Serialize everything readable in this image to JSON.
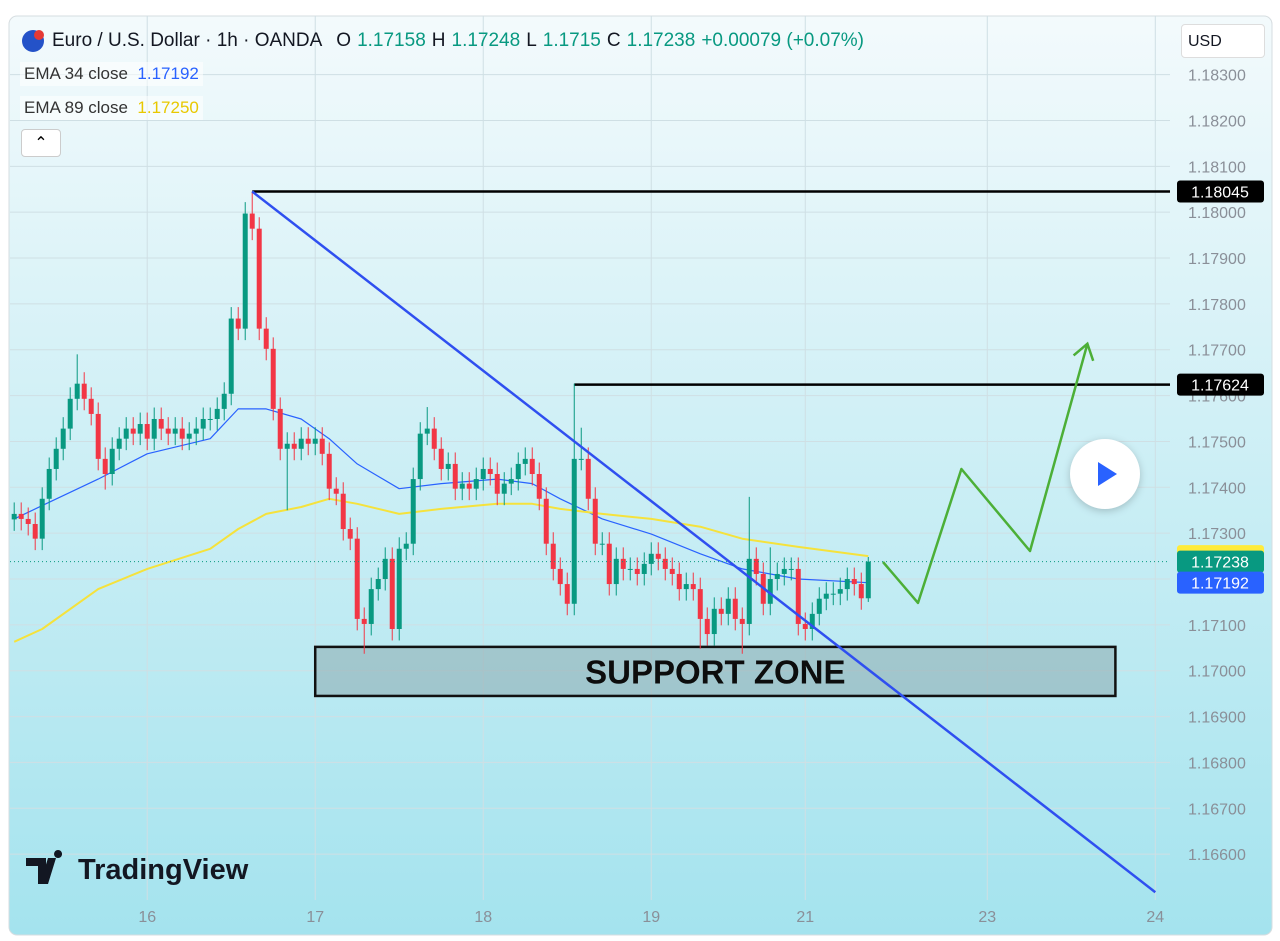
{
  "header": {
    "title": "Euro / U.S. Dollar · 1h · OANDA",
    "open_label": "O",
    "open": 1.17158,
    "high_label": "H",
    "high": 1.17248,
    "low_label": "L",
    "low": 1.1715,
    "close_label": "C",
    "close": 1.17238,
    "change": "+0.00079 (+0.07%)",
    "currency": "USD",
    "logo": "TradingView"
  },
  "chart_data": {
    "type": "candlestick",
    "xlim": [
      -19.6,
      146.1
    ],
    "ylim": [
      1.165,
      1.1843
    ],
    "grid": true,
    "xticks": [
      {
        "value": 0,
        "label": "16"
      },
      {
        "value": 24,
        "label": "17"
      },
      {
        "value": 48,
        "label": "18"
      },
      {
        "value": 72,
        "label": "19"
      },
      {
        "value": 94,
        "label": "21"
      },
      {
        "value": 120,
        "label": "23"
      },
      {
        "value": 144,
        "label": "24"
      }
    ],
    "yticks": [
      {
        "value": 1.166,
        "label": "1.16600"
      },
      {
        "value": 1.167,
        "label": "1.16700"
      },
      {
        "value": 1.168,
        "label": "1.16800"
      },
      {
        "value": 1.169,
        "label": "1.16900"
      },
      {
        "value": 1.17,
        "label": "1.17000"
      },
      {
        "value": 1.171,
        "label": "1.17100"
      },
      {
        "value": 1.172,
        "label": "1.17200"
      },
      {
        "value": 1.173,
        "label": "1.17300"
      },
      {
        "value": 1.174,
        "label": "1.17400"
      },
      {
        "value": 1.175,
        "label": "1.17500"
      },
      {
        "value": 1.176,
        "label": "1.17600"
      },
      {
        "value": 1.177,
        "label": "1.17700"
      },
      {
        "value": 1.178,
        "label": "1.17800"
      },
      {
        "value": 1.179,
        "label": "1.17900"
      },
      {
        "value": 1.18,
        "label": "1.18000"
      },
      {
        "value": 1.181,
        "label": "1.18100"
      },
      {
        "value": 1.182,
        "label": "1.18200"
      },
      {
        "value": 1.183,
        "label": "1.18300"
      }
    ],
    "candles": {
      "up_color": "#089981",
      "down_color": "#f23645",
      "x": [
        -19,
        -18,
        -17,
        -16,
        -15,
        -14,
        -13,
        -12,
        -11,
        -10,
        -9,
        -8,
        -7,
        -6,
        -5,
        -4,
        -3,
        -2,
        -1,
        0,
        1,
        2,
        3,
        4,
        5,
        6,
        7,
        8,
        9,
        10,
        11,
        12,
        13,
        14,
        15,
        16,
        17,
        18,
        19,
        20,
        21,
        22,
        23,
        24,
        25,
        26,
        27,
        28,
        29,
        30,
        31,
        32,
        33,
        34,
        35,
        36,
        37,
        38,
        39,
        40,
        41,
        42,
        43,
        44,
        45,
        46,
        47,
        48,
        49,
        50,
        51,
        52,
        53,
        54,
        55,
        56,
        57,
        58,
        59,
        60,
        61,
        62,
        63,
        64,
        65,
        66,
        67,
        68,
        69,
        70,
        71,
        72,
        73,
        74,
        75,
        76,
        77,
        78,
        79,
        80,
        81,
        82,
        83,
        84,
        85,
        86,
        87,
        88,
        89,
        90,
        91,
        92,
        93,
        94,
        95,
        96,
        97,
        98,
        99,
        100,
        101,
        102,
        103
      ],
      "ohlc": [
        [
          1.1733,
          1.17367,
          1.17305,
          1.17342
        ],
        [
          1.17342,
          1.17367,
          1.17306,
          1.17331
        ],
        [
          1.17331,
          1.17356,
          1.17295,
          1.1732
        ],
        [
          1.1732,
          1.17345,
          1.17263,
          1.17288
        ],
        [
          1.17288,
          1.174,
          1.17263,
          1.17375
        ],
        [
          1.17375,
          1.17465,
          1.1735,
          1.1744
        ],
        [
          1.1744,
          1.17509,
          1.17415,
          1.17484
        ],
        [
          1.17484,
          1.17553,
          1.17459,
          1.17528
        ],
        [
          1.17528,
          1.17618,
          1.17503,
          1.17593
        ],
        [
          1.17593,
          1.1769,
          1.17568,
          1.17626
        ],
        [
          1.17626,
          1.17651,
          1.17568,
          1.17593
        ],
        [
          1.17593,
          1.17618,
          1.17535,
          1.1756
        ],
        [
          1.1756,
          1.17585,
          1.17437,
          1.17462
        ],
        [
          1.17462,
          1.17487,
          1.17395,
          1.17429
        ],
        [
          1.17429,
          1.17509,
          1.17404,
          1.17484
        ],
        [
          1.17484,
          1.17531,
          1.17459,
          1.17506
        ],
        [
          1.17506,
          1.17553,
          1.17481,
          1.17528
        ],
        [
          1.17528,
          1.17553,
          1.17492,
          1.17517
        ],
        [
          1.17517,
          1.17563,
          1.17492,
          1.17538
        ],
        [
          1.17538,
          1.17563,
          1.17481,
          1.17506
        ],
        [
          1.17506,
          1.17574,
          1.17481,
          1.17549
        ],
        [
          1.17549,
          1.17574,
          1.17503,
          1.17528
        ],
        [
          1.17528,
          1.17553,
          1.17492,
          1.17517
        ],
        [
          1.17517,
          1.17553,
          1.17492,
          1.17528
        ],
        [
          1.17528,
          1.17553,
          1.17481,
          1.17506
        ],
        [
          1.17506,
          1.17542,
          1.17481,
          1.17517
        ],
        [
          1.17517,
          1.17553,
          1.17492,
          1.17528
        ],
        [
          1.17528,
          1.17574,
          1.17503,
          1.17549
        ],
        [
          1.17549,
          1.17574,
          1.17524,
          1.17549
        ],
        [
          1.17549,
          1.17596,
          1.17524,
          1.17571
        ],
        [
          1.17571,
          1.17629,
          1.17546,
          1.17604
        ],
        [
          1.17604,
          1.17793,
          1.17579,
          1.17768
        ],
        [
          1.17768,
          1.17793,
          1.17721,
          1.17746
        ],
        [
          1.17746,
          1.18022,
          1.17721,
          1.17997
        ],
        [
          1.17997,
          1.18045,
          1.17939,
          1.17964
        ],
        [
          1.17964,
          1.17989,
          1.17721,
          1.17746
        ],
        [
          1.17746,
          1.17771,
          1.17677,
          1.17702
        ],
        [
          1.17702,
          1.17727,
          1.17546,
          1.17571
        ],
        [
          1.17571,
          1.17596,
          1.17459,
          1.17484
        ],
        [
          1.17484,
          1.1752,
          1.1735,
          1.17495
        ],
        [
          1.17495,
          1.1752,
          1.17459,
          1.17484
        ],
        [
          1.17484,
          1.17531,
          1.17459,
          1.17506
        ],
        [
          1.17506,
          1.17531,
          1.1747,
          1.17495
        ],
        [
          1.17495,
          1.17531,
          1.1747,
          1.17506
        ],
        [
          1.17506,
          1.17531,
          1.17448,
          1.17473
        ],
        [
          1.17473,
          1.17498,
          1.17372,
          1.17397
        ],
        [
          1.17397,
          1.17422,
          1.17361,
          1.17386
        ],
        [
          1.17386,
          1.17411,
          1.17284,
          1.17309
        ],
        [
          1.17309,
          1.17334,
          1.17263,
          1.17288
        ],
        [
          1.17288,
          1.17313,
          1.17088,
          1.17113
        ],
        [
          1.17113,
          1.17138,
          1.17037,
          1.17102
        ],
        [
          1.17102,
          1.17203,
          1.17077,
          1.17178
        ],
        [
          1.17178,
          1.17225,
          1.17153,
          1.172
        ],
        [
          1.172,
          1.17269,
          1.17175,
          1.17244
        ],
        [
          1.17244,
          1.17269,
          1.17066,
          1.17091
        ],
        [
          1.17091,
          1.17291,
          1.17066,
          1.17266
        ],
        [
          1.17266,
          1.17302,
          1.17241,
          1.17277
        ],
        [
          1.17277,
          1.17443,
          1.17252,
          1.17418
        ],
        [
          1.17418,
          1.17542,
          1.17393,
          1.17517
        ],
        [
          1.17517,
          1.17575,
          1.17492,
          1.17528
        ],
        [
          1.17528,
          1.17553,
          1.17459,
          1.17484
        ],
        [
          1.17484,
          1.17509,
          1.17415,
          1.1744
        ],
        [
          1.1744,
          1.17476,
          1.17415,
          1.17451
        ],
        [
          1.17451,
          1.17476,
          1.17372,
          1.17397
        ],
        [
          1.17397,
          1.17433,
          1.17372,
          1.17408
        ],
        [
          1.17408,
          1.17433,
          1.17372,
          1.17397
        ],
        [
          1.17397,
          1.17443,
          1.17372,
          1.17418
        ],
        [
          1.17418,
          1.17465,
          1.17393,
          1.1744
        ],
        [
          1.1744,
          1.17465,
          1.17404,
          1.17429
        ],
        [
          1.17429,
          1.17454,
          1.17361,
          1.17386
        ],
        [
          1.17386,
          1.17433,
          1.17361,
          1.17408
        ],
        [
          1.17408,
          1.17443,
          1.17383,
          1.17418
        ],
        [
          1.17418,
          1.17476,
          1.17393,
          1.17451
        ],
        [
          1.17451,
          1.17487,
          1.17426,
          1.17462
        ],
        [
          1.17462,
          1.17487,
          1.17404,
          1.17429
        ],
        [
          1.17429,
          1.17454,
          1.1735,
          1.17375
        ],
        [
          1.17375,
          1.174,
          1.17252,
          1.17277
        ],
        [
          1.17277,
          1.17302,
          1.17197,
          1.17222
        ],
        [
          1.17222,
          1.17247,
          1.17164,
          1.17189
        ],
        [
          1.17189,
          1.17214,
          1.17121,
          1.17146
        ],
        [
          1.17146,
          1.17626,
          1.17121,
          1.17462
        ],
        [
          1.17462,
          1.1753,
          1.17437,
          1.17462
        ],
        [
          1.17462,
          1.17487,
          1.1735,
          1.17375
        ],
        [
          1.17375,
          1.174,
          1.17252,
          1.17277
        ],
        [
          1.17277,
          1.17302,
          1.17252,
          1.17277
        ],
        [
          1.17277,
          1.17302,
          1.17164,
          1.17189
        ],
        [
          1.17189,
          1.17269,
          1.17164,
          1.17244
        ],
        [
          1.17244,
          1.17269,
          1.17197,
          1.17222
        ],
        [
          1.17222,
          1.17247,
          1.17197,
          1.17222
        ],
        [
          1.17222,
          1.17247,
          1.17186,
          1.17211
        ],
        [
          1.17211,
          1.17258,
          1.17186,
          1.17233
        ],
        [
          1.17233,
          1.1728,
          1.17208,
          1.17255
        ],
        [
          1.17255,
          1.1728,
          1.17219,
          1.17244
        ],
        [
          1.17244,
          1.17269,
          1.17197,
          1.17222
        ],
        [
          1.17222,
          1.17247,
          1.17186,
          1.17211
        ],
        [
          1.17211,
          1.17236,
          1.17153,
          1.17178
        ],
        [
          1.17178,
          1.17214,
          1.17153,
          1.17189
        ],
        [
          1.17189,
          1.17214,
          1.17153,
          1.17178
        ],
        [
          1.17178,
          1.17203,
          1.17048,
          1.17113
        ],
        [
          1.17113,
          1.17138,
          1.17055,
          1.1708
        ],
        [
          1.1708,
          1.1716,
          1.17055,
          1.17135
        ],
        [
          1.17135,
          1.1716,
          1.17099,
          1.17124
        ],
        [
          1.17124,
          1.17182,
          1.17099,
          1.17157
        ],
        [
          1.17157,
          1.17182,
          1.17088,
          1.17113
        ],
        [
          1.17113,
          1.17138,
          1.17037,
          1.17102
        ],
        [
          1.17102,
          1.17379,
          1.17077,
          1.17244
        ],
        [
          1.17244,
          1.17269,
          1.17186,
          1.17211
        ],
        [
          1.17211,
          1.17236,
          1.17121,
          1.17146
        ],
        [
          1.17146,
          1.17269,
          1.17121,
          1.172
        ],
        [
          1.172,
          1.17236,
          1.17175,
          1.17211
        ],
        [
          1.17211,
          1.17247,
          1.17186,
          1.17222
        ],
        [
          1.17222,
          1.17247,
          1.17197,
          1.17222
        ],
        [
          1.17222,
          1.17247,
          1.17077,
          1.17102
        ],
        [
          1.17102,
          1.17127,
          1.17066,
          1.17091
        ],
        [
          1.17091,
          1.17149,
          1.17066,
          1.17124
        ],
        [
          1.17124,
          1.17182,
          1.17099,
          1.17157
        ],
        [
          1.17157,
          1.17193,
          1.17132,
          1.17168
        ],
        [
          1.17168,
          1.17193,
          1.17143,
          1.17168
        ],
        [
          1.17168,
          1.17203,
          1.17143,
          1.17178
        ],
        [
          1.17178,
          1.17225,
          1.17153,
          1.172
        ],
        [
          1.172,
          1.17225,
          1.17164,
          1.17189
        ],
        [
          1.17189,
          1.17214,
          1.17133,
          1.17158
        ],
        [
          1.17158,
          1.17248,
          1.1715,
          1.17238
        ]
      ]
    },
    "series": [
      {
        "name": "EMA 34 close",
        "color": "#2962ff",
        "last": 1.17192,
        "x": [
          -19,
          -15,
          -7,
          0,
          9,
          13,
          17,
          22,
          26,
          30,
          36,
          42,
          50,
          55,
          59,
          65,
          72,
          79,
          85,
          93,
          103
        ],
        "values": [
          1.17331,
          1.1736,
          1.17418,
          1.17473,
          1.17506,
          1.17571,
          1.17571,
          1.17549,
          1.17506,
          1.17451,
          1.17397,
          1.17408,
          1.17418,
          1.17408,
          1.17375,
          1.17331,
          1.17298,
          1.17255,
          1.17222,
          1.172,
          1.17192
        ]
      },
      {
        "name": "EMA 89 close",
        "color": "#f5e23c",
        "last": {
          "value": 1.1725,
          "label": "1.17250"
        },
        "x": [
          -19,
          -15,
          -7,
          0,
          9,
          13,
          17,
          22,
          26,
          30,
          36,
          42,
          50,
          55,
          59,
          65,
          72,
          79,
          85,
          93,
          103
        ],
        "values": [
          1.17063,
          1.17091,
          1.17178,
          1.17222,
          1.17266,
          1.17309,
          1.17342,
          1.17357,
          1.17375,
          1.17364,
          1.17342,
          1.17353,
          1.17364,
          1.17364,
          1.17353,
          1.17342,
          1.17331,
          1.17314,
          1.17288,
          1.1727,
          1.1725
        ]
      }
    ],
    "levels": [
      {
        "price": 1.18045,
        "x_start": 15
      },
      {
        "price": 1.17624,
        "x_start": 61
      }
    ],
    "trendline": {
      "color": "#2f4ff0",
      "x": [
        15,
        144
      ],
      "values": [
        1.18045,
        1.16517
      ]
    },
    "projection": {
      "color": "#4caf37",
      "x": [
        105.1,
        110.1,
        116.3,
        126.1,
        134.3
      ],
      "values": [
        1.17237,
        1.17148,
        1.1744,
        1.17261,
        1.17713
      ]
    },
    "support_zone": {
      "label": "SUPPORT ZONE",
      "x": [
        24,
        138.3
      ],
      "values": [
        1.17052,
        1.16945
      ]
    }
  }
}
